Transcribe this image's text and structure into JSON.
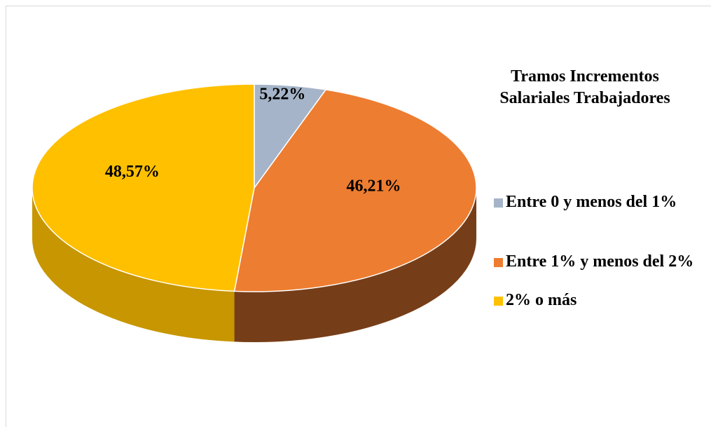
{
  "chart_data": {
    "type": "pie3d",
    "title": "Tramos Incrementos Salariales Trabajadores",
    "categories": [
      "Entre 0 y menos del 1%",
      "Entre 1% y menos del 2%",
      "2% o más"
    ],
    "values": [
      5.22,
      46.21,
      48.57
    ],
    "value_labels": [
      "5,22%",
      "46,21%",
      "48,57%"
    ],
    "colors": [
      "#a5b4c8",
      "#ed7d31",
      "#ffc000"
    ],
    "legend": "right"
  }
}
